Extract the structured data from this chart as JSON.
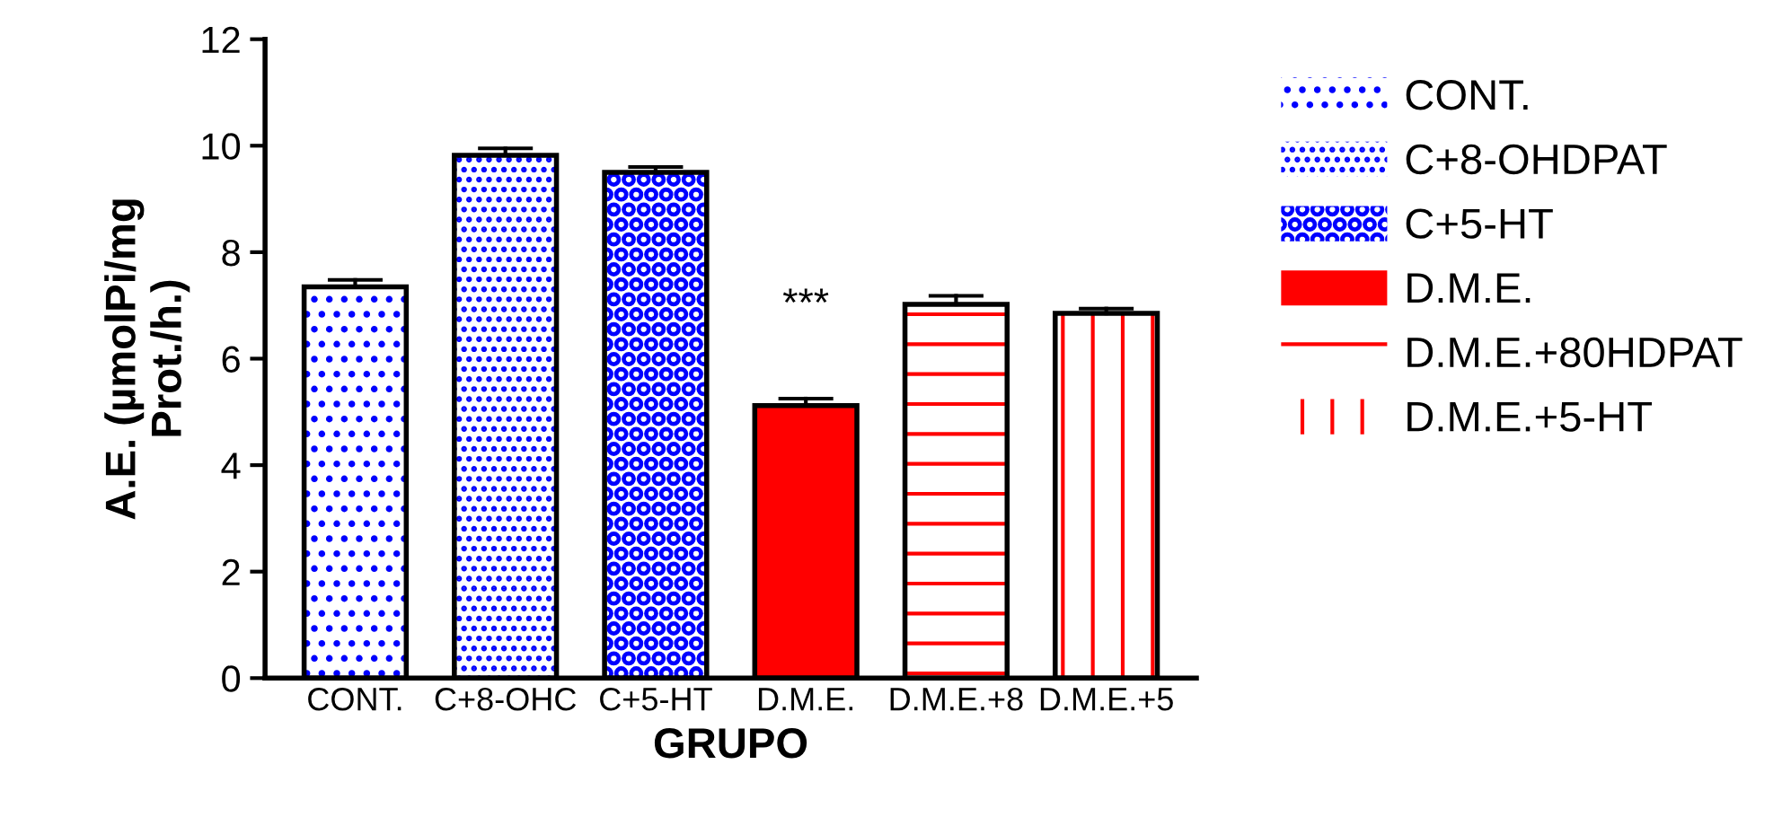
{
  "chart_data": {
    "type": "bar",
    "xlabel": "GRUPO",
    "ylabel": "A.E. (µmolPi/mg\nProt./h.)",
    "categories": [
      "CONT.",
      "C+8-OHC",
      "C+5-HT",
      "D.M.E.",
      "D.M.E.+8",
      "D.M.E.+5"
    ],
    "series": [
      {
        "name": "CONT.",
        "color": "#0000ff",
        "values": [
          7.35,
          null,
          null,
          null,
          null,
          null
        ],
        "errors": [
          [
            7.35,
            7.48
          ],
          null,
          null,
          null,
          null,
          null
        ]
      },
      {
        "name": "C+8-OHDPAT",
        "color": "#0000ff",
        "values": [
          null,
          9.82,
          null,
          null,
          null,
          null
        ],
        "errors": [
          null,
          [
            9.82,
            9.95
          ],
          null,
          null,
          null,
          null
        ]
      },
      {
        "name": "C+5-HT",
        "color": "#0000ff",
        "values": [
          null,
          null,
          9.5,
          null,
          null,
          null
        ],
        "errors": [
          null,
          null,
          [
            9.5,
            9.6
          ],
          null,
          null,
          null
        ]
      },
      {
        "name": "D.M.E.",
        "color": "#ff0000",
        "values": [
          null,
          null,
          null,
          5.12,
          null,
          null
        ],
        "errors": [
          null,
          null,
          null,
          [
            5.12,
            5.25
          ],
          null,
          null
        ]
      },
      {
        "name": "D.M.E.+80HDPAT",
        "color": "#ff0000",
        "values": [
          null,
          null,
          null,
          null,
          7.02,
          null
        ],
        "errors": [
          null,
          null,
          null,
          null,
          [
            7.02,
            7.18
          ],
          null
        ]
      },
      {
        "name": "D.M.E.+5-HT",
        "color": "#ff0000",
        "values": [
          null,
          null,
          null,
          null,
          null,
          6.85
        ],
        "errors": [
          null,
          null,
          null,
          null,
          null,
          [
            6.85,
            6.94
          ]
        ]
      }
    ],
    "annotations": [
      "***"
    ],
    "ylim": [
      0,
      12
    ],
    "yticks": [
      0,
      2,
      4,
      6,
      8,
      10,
      12
    ],
    "grid": false,
    "legend": "right"
  }
}
